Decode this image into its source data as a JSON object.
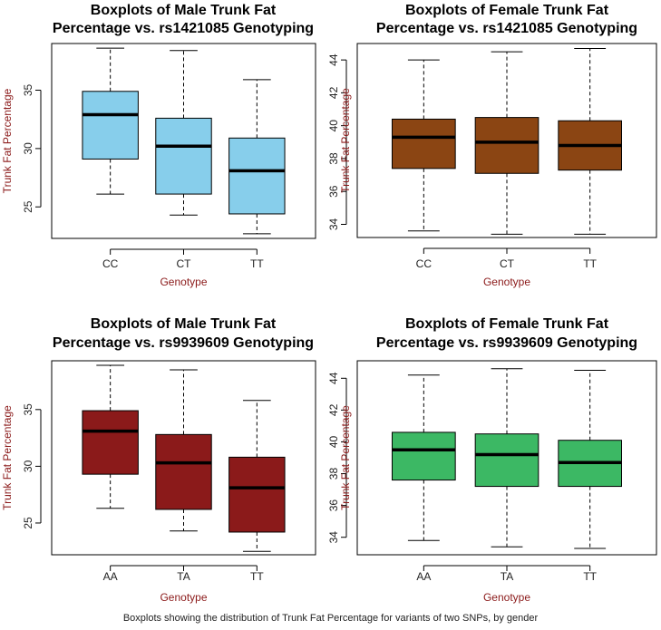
{
  "caption": "Boxplots showing the distribution of Trunk Fat Percentage for variants of two SNPs, by gender",
  "chart_data": [
    {
      "type": "boxplot",
      "title_line1": "Boxplots of Male Trunk Fat",
      "title_line2": "Percentage vs. rs1421085 Genotyping",
      "xlabel": "Genotype",
      "ylabel": "Trunk Fat Percentage",
      "ylim": [
        22.3,
        39.0
      ],
      "yticks": [
        25,
        30,
        35
      ],
      "fill": "#87ceeb",
      "categories": [
        "CC",
        "CT",
        "TT"
      ],
      "boxes": [
        {
          "whisker_low": 26.1,
          "q1": 29.1,
          "median": 32.9,
          "q3": 34.9,
          "whisker_high": 38.6
        },
        {
          "whisker_low": 24.3,
          "q1": 26.1,
          "median": 30.2,
          "q3": 32.6,
          "whisker_high": 38.4
        },
        {
          "whisker_low": 22.7,
          "q1": 24.4,
          "median": 28.1,
          "q3": 30.9,
          "whisker_high": 35.9
        }
      ]
    },
    {
      "type": "boxplot",
      "title_line1": "Boxplots of Female Trunk Fat",
      "title_line2": "Percentage vs. rs1421085 Genotyping",
      "xlabel": "Genotype",
      "ylabel": "Trunk Fat Percentage",
      "ylim": [
        33.2,
        45.0
      ],
      "yticks": [
        34,
        36,
        38,
        40,
        42,
        44
      ],
      "fill": "#8b4513",
      "categories": [
        "CC",
        "CT",
        "TT"
      ],
      "boxes": [
        {
          "whisker_low": 33.6,
          "q1": 37.4,
          "median": 39.3,
          "q3": 40.4,
          "whisker_high": 44.0
        },
        {
          "whisker_low": 33.4,
          "q1": 37.1,
          "median": 39.0,
          "q3": 40.5,
          "whisker_high": 44.5
        },
        {
          "whisker_low": 33.4,
          "q1": 37.3,
          "median": 38.8,
          "q3": 40.3,
          "whisker_high": 44.7
        }
      ]
    },
    {
      "type": "boxplot",
      "title_line1": "Boxplots of Male Trunk Fat",
      "title_line2": "Percentage vs. rs9939609 Genotyping",
      "xlabel": "Genotype",
      "ylabel": "Trunk Fat Percentage",
      "ylim": [
        22.2,
        39.3
      ],
      "yticks": [
        25,
        30,
        35
      ],
      "fill": "#8b1a1a",
      "categories": [
        "AA",
        "TA",
        "TT"
      ],
      "boxes": [
        {
          "whisker_low": 26.3,
          "q1": 29.3,
          "median": 33.1,
          "q3": 34.9,
          "whisker_high": 38.9
        },
        {
          "whisker_low": 24.3,
          "q1": 26.2,
          "median": 30.3,
          "q3": 32.8,
          "whisker_high": 38.5
        },
        {
          "whisker_low": 22.5,
          "q1": 24.2,
          "median": 28.1,
          "q3": 30.8,
          "whisker_high": 35.8
        }
      ]
    },
    {
      "type": "boxplot",
      "title_line1": "Boxplots of Female Trunk Fat",
      "title_line2": "Percentage vs. rs9939609 Genotyping",
      "xlabel": "Genotype",
      "ylabel": "Trunk Fat Percentage",
      "ylim": [
        32.9,
        45.1
      ],
      "yticks": [
        34,
        36,
        38,
        40,
        42,
        44
      ],
      "fill": "#3cb864",
      "categories": [
        "AA",
        "TA",
        "TT"
      ],
      "boxes": [
        {
          "whisker_low": 33.8,
          "q1": 37.6,
          "median": 39.5,
          "q3": 40.6,
          "whisker_high": 44.2
        },
        {
          "whisker_low": 33.4,
          "q1": 37.2,
          "median": 39.2,
          "q3": 40.5,
          "whisker_high": 44.6
        },
        {
          "whisker_low": 33.3,
          "q1": 37.2,
          "median": 38.7,
          "q3": 40.1,
          "whisker_high": 44.5
        }
      ]
    }
  ]
}
